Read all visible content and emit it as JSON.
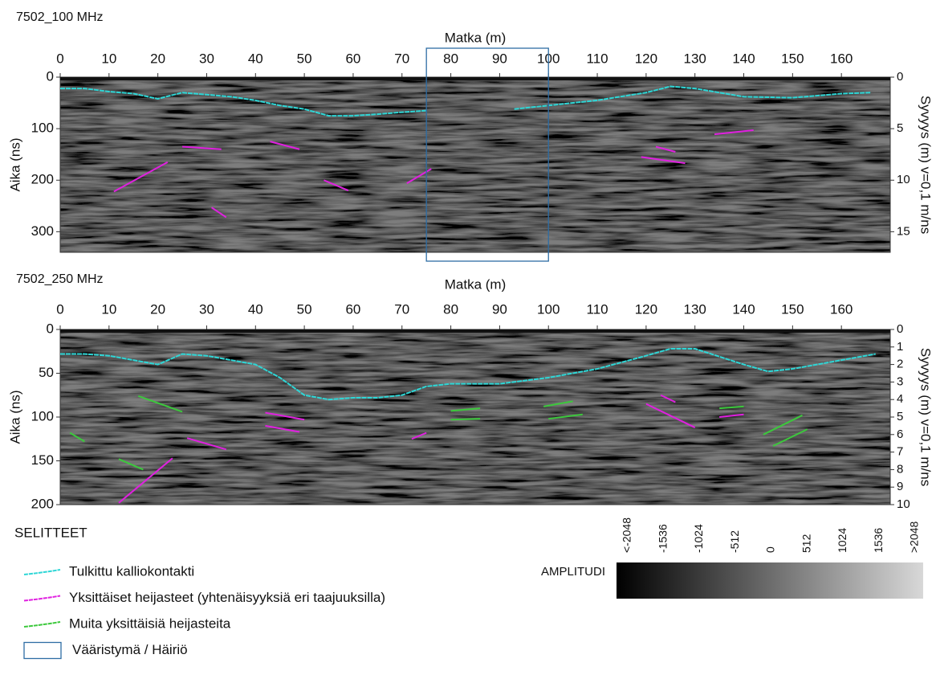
{
  "chart_data": [
    {
      "type": "radargram",
      "title": "7502_100 MHz",
      "x_label": "Matka (m)",
      "y_label": "Aika (ns)",
      "y2_label": "Syvyys (m) v=0,1 m/ns",
      "xlim": [
        0,
        170
      ],
      "xticks": [
        0,
        10,
        20,
        30,
        40,
        50,
        60,
        70,
        80,
        90,
        100,
        110,
        120,
        130,
        140,
        150,
        160
      ],
      "ylim": [
        0,
        340
      ],
      "yticks": [
        0,
        100,
        200,
        300
      ],
      "y_inverted": true,
      "y2lim": [
        0,
        17
      ],
      "y2ticks": [
        0,
        5,
        10,
        15
      ],
      "box": {
        "x": [
          75,
          100
        ],
        "color": "#2e6da4"
      },
      "series": [
        {
          "color": "#2ed6d6",
          "x": [
            0,
            5,
            10,
            15,
            20,
            25,
            30,
            35,
            40,
            45,
            50,
            55,
            60,
            65,
            70,
            75,
            null,
            93,
            100,
            110,
            120,
            125,
            130,
            140,
            150,
            160,
            166
          ],
          "values": [
            22,
            22,
            28,
            32,
            42,
            30,
            34,
            38,
            45,
            55,
            62,
            75,
            75,
            72,
            68,
            65,
            null,
            62,
            55,
            45,
            30,
            18,
            22,
            38,
            40,
            32,
            30
          ]
        },
        {
          "color": "#e020e0",
          "x": [
            11,
            22,
            null,
            25,
            33,
            null,
            31,
            34,
            null,
            43,
            49,
            null,
            54,
            59,
            null,
            71,
            76,
            null,
            119,
            128,
            null,
            122,
            126,
            null,
            134,
            142
          ],
          "values": [
            222,
            165,
            null,
            135,
            140,
            null,
            253,
            272,
            null,
            125,
            140,
            null,
            200,
            220,
            null,
            206,
            178,
            null,
            155,
            167,
            null,
            135,
            145,
            null,
            111,
            103
          ]
        }
      ]
    },
    {
      "type": "radargram",
      "title": "7502_250 MHz",
      "x_label": "Matka (m)",
      "y_label": "Aika (ns)",
      "y2_label": "Syvyys (m) v=0,1 m/ns",
      "xlim": [
        0,
        170
      ],
      "xticks": [
        0,
        10,
        20,
        30,
        40,
        50,
        60,
        70,
        80,
        90,
        100,
        110,
        120,
        130,
        140,
        150,
        160
      ],
      "ylim": [
        0,
        200
      ],
      "yticks": [
        0,
        50,
        100,
        150,
        200
      ],
      "y_inverted": true,
      "y2lim": [
        0,
        10
      ],
      "y2ticks": [
        0,
        1,
        2,
        3,
        4,
        5,
        6,
        7,
        8,
        9,
        10
      ],
      "series": [
        {
          "color": "#2ed6d6",
          "x": [
            0,
            5,
            10,
            20,
            25,
            30,
            35,
            40,
            45,
            50,
            55,
            60,
            65,
            70,
            75,
            80,
            90,
            100,
            105,
            110,
            120,
            125,
            130,
            140,
            145,
            150,
            160,
            167
          ],
          "values": [
            28,
            28,
            30,
            40,
            28,
            30,
            35,
            40,
            55,
            75,
            80,
            78,
            78,
            75,
            65,
            62,
            62,
            55,
            50,
            45,
            30,
            22,
            22,
            40,
            48,
            45,
            35,
            28
          ]
        },
        {
          "color": "#e020e0",
          "x": [
            12,
            23,
            null,
            26,
            34,
            null,
            42,
            50,
            null,
            42,
            49,
            null,
            72,
            75,
            null,
            120,
            130,
            null,
            123,
            126,
            null,
            135,
            140
          ],
          "values": [
            198,
            147,
            null,
            124,
            137,
            null,
            95,
            103,
            null,
            110,
            117,
            null,
            125,
            118,
            null,
            85,
            112,
            null,
            75,
            83,
            null,
            100,
            97
          ]
        },
        {
          "color": "#3cc83c",
          "x": [
            2,
            5,
            null,
            16,
            25,
            null,
            12,
            17,
            null,
            80,
            86,
            null,
            80,
            86,
            null,
            99,
            105,
            null,
            100,
            107,
            null,
            135,
            140,
            null,
            144,
            152,
            null,
            146,
            153
          ],
          "values": [
            118,
            128,
            null,
            76,
            94,
            null,
            148,
            160,
            null,
            103,
            102,
            null,
            93,
            90,
            null,
            88,
            82,
            null,
            102,
            97,
            null,
            90,
            88,
            null,
            120,
            98,
            null,
            133,
            114
          ]
        }
      ]
    }
  ],
  "legend": {
    "title": "SELITTEET",
    "items": [
      {
        "label": "Tulkittu kalliokontakti",
        "color": "#2ed6d6"
      },
      {
        "label": "Yksittäiset heijasteet (yhtenäisyyksiä eri taajuuksilla)",
        "color": "#e020e0"
      },
      {
        "label": "Muita yksittäisiä heijasteita",
        "color": "#3cc83c"
      },
      {
        "label": "Vääristymä / Häiriö",
        "color": "#2e6da4"
      }
    ]
  },
  "colorbar": {
    "title": "AMPLITUDI",
    "lim": [
      -2048,
      2048
    ],
    "ticks": [
      {
        "value": -2048,
        "label": "<-2048"
      },
      -1536,
      -1024,
      -512,
      0,
      512,
      1024,
      1536,
      {
        "value": 2048,
        "label": ">2048"
      }
    ]
  }
}
